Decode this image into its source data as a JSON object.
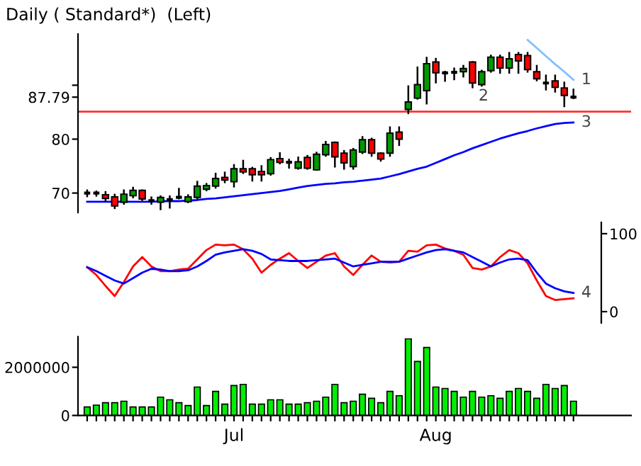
{
  "chart_data": [
    {
      "type": "candlestick",
      "title": "Daily ( Standard*)  (Left)",
      "ohlc": [
        [
          70.0,
          70.5,
          69.4,
          70.0
        ],
        [
          70.0,
          70.3,
          69.5,
          70.0
        ],
        [
          69.7,
          70.2,
          68.6,
          69.0
        ],
        [
          69.3,
          69.7,
          67.2,
          67.6
        ],
        [
          68.3,
          70.5,
          68.0,
          69.8
        ],
        [
          69.5,
          71.0,
          69.2,
          70.5
        ],
        [
          70.5,
          70.5,
          68.7,
          68.9
        ],
        [
          68.6,
          69.2,
          68.0,
          68.6
        ],
        [
          68.3,
          69.4,
          67.0,
          69.2
        ],
        [
          68.8,
          69.4,
          67.3,
          68.8
        ],
        [
          69.2,
          70.8,
          69.0,
          69.2
        ],
        [
          68.4,
          69.6,
          68.3,
          69.3
        ],
        [
          69.2,
          72.1,
          69.0,
          71.3
        ],
        [
          70.7,
          71.7,
          70.5,
          71.4
        ],
        [
          71.3,
          73.6,
          71.0,
          72.7
        ],
        [
          72.9,
          73.8,
          72.0,
          72.4
        ],
        [
          72.1,
          75.2,
          71.2,
          74.5
        ],
        [
          74.5,
          76.0,
          73.7,
          73.9
        ],
        [
          74.5,
          74.7,
          72.3,
          73.4
        ],
        [
          74.0,
          75.0,
          72.3,
          73.4
        ],
        [
          73.6,
          76.5,
          73.4,
          76.2
        ],
        [
          76.4,
          77.4,
          75.5,
          75.7
        ],
        [
          75.7,
          76.2,
          74.7,
          75.7
        ],
        [
          74.6,
          76.6,
          74.5,
          75.8
        ],
        [
          76.6,
          76.9,
          74.5,
          74.6
        ],
        [
          74.3,
          77.5,
          74.3,
          77.2
        ],
        [
          77.1,
          79.5,
          76.9,
          79.0
        ],
        [
          79.4,
          79.4,
          74.9,
          76.7
        ],
        [
          77.4,
          77.8,
          74.5,
          75.6
        ],
        [
          74.9,
          78.2,
          74.5,
          78.0
        ],
        [
          77.6,
          80.4,
          77.4,
          79.9
        ],
        [
          79.9,
          80.1,
          76.9,
          77.4
        ],
        [
          77.4,
          77.4,
          76.0,
          76.3
        ],
        [
          77.4,
          82.2,
          76.9,
          81.1
        ],
        [
          81.3,
          82.2,
          78.9,
          80.0
        ],
        [
          85.5,
          89.8,
          84.8,
          86.9
        ],
        [
          87.6,
          93.3,
          87.5,
          90.1
        ],
        [
          89.0,
          95.1,
          86.6,
          94.0
        ],
        [
          94.3,
          94.9,
          90.5,
          92.3
        ],
        [
          92.3,
          92.5,
          90.8,
          92.3
        ],
        [
          92.4,
          93.1,
          91.1,
          92.4
        ],
        [
          92.5,
          93.6,
          91.6,
          93.1
        ],
        [
          94.3,
          94.3,
          89.6,
          90.4
        ],
        [
          90.1,
          92.7,
          89.9,
          92.5
        ],
        [
          92.7,
          95.5,
          92.5,
          95.2
        ],
        [
          95.2,
          95.5,
          92.3,
          93.2
        ],
        [
          93.2,
          96.0,
          92.3,
          94.9
        ],
        [
          95.7,
          96.0,
          92.3,
          94.5
        ],
        [
          95.5,
          96.0,
          92.5,
          92.9
        ],
        [
          92.5,
          93.6,
          90.9,
          91.2
        ],
        [
          90.4,
          91.8,
          89.2,
          90.4
        ],
        [
          90.8,
          91.8,
          88.8,
          89.6
        ],
        [
          89.5,
          90.5,
          86.1,
          88.1
        ],
        [
          87.79,
          89.2,
          87.6,
          87.79
        ]
      ],
      "colors": [
        "#000000",
        "#000000",
        "#ff0000",
        "#ff0000",
        "#009900",
        "#009900",
        "#ff0000",
        "#000000",
        "#009900",
        "#000000",
        "#000000",
        "#009900",
        "#009900",
        "#009900",
        "#009900",
        "#ff0000",
        "#009900",
        "#ff0000",
        "#ff0000",
        "#ff0000",
        "#009900",
        "#ff0000",
        "#000000",
        "#009900",
        "#ff0000",
        "#009900",
        "#009900",
        "#ff0000",
        "#ff0000",
        "#009900",
        "#009900",
        "#ff0000",
        "#ff0000",
        "#009900",
        "#ff0000",
        "#009900",
        "#009900",
        "#009900",
        "#ff0000",
        "#000000",
        "#000000",
        "#009900",
        "#ff0000",
        "#009900",
        "#009900",
        "#ff0000",
        "#009900",
        "#ff0000",
        "#ff0000",
        "#ff0000",
        "#000000",
        "#ff0000",
        "#ff0000",
        "#000000"
      ],
      "series": [
        {
          "name": "3",
          "type": "line",
          "color": "#0000ff",
          "values": [
            68.4,
            68.4,
            68.4,
            68.4,
            68.4,
            68.4,
            68.4,
            68.4,
            68.5,
            68.5,
            68.5,
            68.6,
            68.7,
            68.9,
            69.0,
            69.2,
            69.4,
            69.6,
            69.8,
            70.0,
            70.2,
            70.4,
            70.7,
            71.0,
            71.3,
            71.5,
            71.7,
            71.8,
            72.0,
            72.1,
            72.3,
            72.5,
            72.7,
            73.1,
            73.5,
            74.0,
            74.5,
            74.9,
            75.6,
            76.3,
            77.0,
            77.6,
            78.3,
            78.9,
            79.5,
            80.1,
            80.6,
            81.1,
            81.5,
            82.0,
            82.4,
            82.8,
            83.0,
            83.1
          ]
        },
        {
          "name": "1",
          "type": "line",
          "color": "#80c0ff",
          "values": [
            null,
            null,
            null,
            null,
            null,
            null,
            null,
            null,
            null,
            null,
            null,
            null,
            null,
            null,
            null,
            null,
            null,
            null,
            null,
            null,
            null,
            null,
            null,
            null,
            null,
            null,
            null,
            null,
            null,
            null,
            null,
            null,
            null,
            null,
            null,
            null,
            null,
            null,
            null,
            null,
            null,
            null,
            null,
            null,
            null,
            null,
            null,
            null,
            98.4,
            96.9,
            95.4,
            93.9,
            92.5,
            91.0
          ]
        }
      ],
      "ref_lines": [
        {
          "axis": "y",
          "value": 85.1,
          "color": "#ff3030"
        }
      ],
      "annotations": [
        "2"
      ],
      "ylim": [
        66.4,
        99.5
      ],
      "yticks": [
        70,
        80,
        87.79,
        {
          "value": 90,
          "label": null
        }
      ],
      "tick_labels": "y",
      "grid": false,
      "legend": false
    },
    {
      "type": "line",
      "series": [
        {
          "type": "line",
          "color": "#ff0000",
          "values": [
            57,
            47,
            33,
            20,
            38,
            58,
            70,
            58,
            52,
            52,
            54,
            55,
            67,
            79,
            86,
            85,
            86,
            80,
            68,
            50,
            60,
            68,
            75,
            65,
            56,
            64,
            72,
            75,
            58,
            47,
            60,
            72,
            64,
            63,
            64,
            78,
            77,
            85,
            86,
            81,
            78,
            73,
            56,
            54,
            58,
            70,
            79,
            75,
            62,
            40,
            20,
            15,
            16,
            17
          ]
        },
        {
          "name": "4",
          "type": "line",
          "color": "#0000ff",
          "values": [
            57,
            52,
            46,
            40,
            36,
            43,
            50,
            55,
            54,
            52,
            52,
            53,
            58,
            65,
            73,
            76,
            78,
            80,
            78,
            74,
            67,
            66,
            65,
            65,
            65,
            66,
            67,
            68,
            63,
            58,
            60,
            62,
            64,
            64,
            64,
            68,
            72,
            76,
            79,
            80,
            78,
            76,
            70,
            64,
            58,
            63,
            67,
            68,
            66,
            50,
            36,
            30,
            26,
            24
          ]
        }
      ],
      "ylim": [
        -14.5,
        114.5
      ],
      "yticks": [
        0,
        100
      ],
      "tick_labels": "y",
      "grid": false,
      "legend": false
    },
    {
      "type": "bar",
      "categories": [
        null,
        null,
        null,
        null,
        null,
        null,
        null,
        null,
        null,
        null,
        null,
        null,
        null,
        null,
        null,
        null,
        "Jul",
        null,
        null,
        null,
        null,
        null,
        null,
        null,
        null,
        null,
        null,
        null,
        null,
        null,
        null,
        null,
        null,
        null,
        null,
        null,
        null,
        null,
        "Aug",
        null,
        null,
        null,
        null,
        null,
        null,
        null,
        null,
        null,
        null,
        null,
        null,
        null,
        null,
        null
      ],
      "values": [
        350000,
        430000,
        530000,
        530000,
        590000,
        350000,
        350000,
        350000,
        760000,
        650000,
        530000,
        410000,
        1180000,
        410000,
        1000000,
        470000,
        1240000,
        1290000,
        470000,
        470000,
        650000,
        650000,
        470000,
        470000,
        530000,
        590000,
        760000,
        1290000,
        530000,
        590000,
        880000,
        710000,
        530000,
        1000000,
        820000,
        3180000,
        2240000,
        2820000,
        1180000,
        1120000,
        1000000,
        760000,
        1000000,
        760000,
        820000,
        710000,
        1000000,
        1120000,
        1000000,
        710000,
        1290000,
        1120000,
        1240000,
        590000
      ],
      "color": "#00ee00",
      "ylim": [
        0,
        3270000
      ],
      "yticks": [
        0,
        2000000
      ],
      "grid": false,
      "legend": false
    }
  ]
}
